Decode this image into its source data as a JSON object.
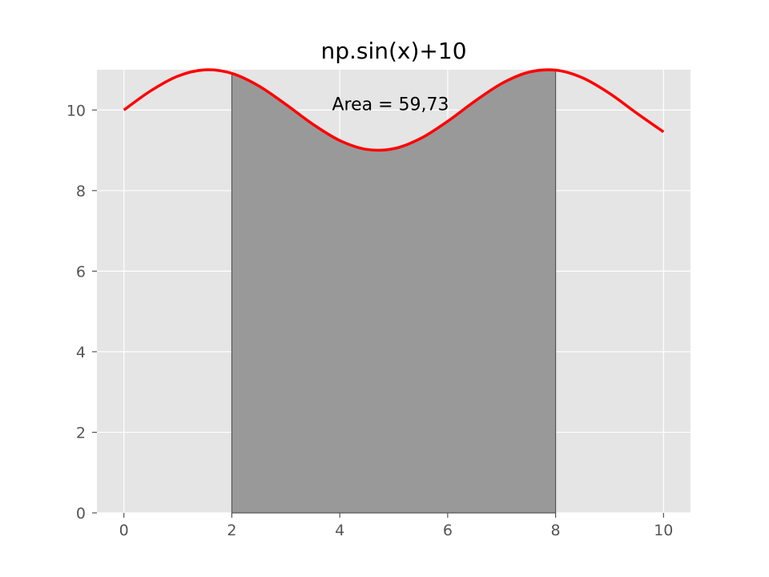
{
  "chart_data": {
    "type": "line",
    "title": "np.sin(x)+10",
    "xlabel": "",
    "ylabel": "",
    "xlim": [
      -0.5,
      10.5
    ],
    "ylim": [
      0,
      11.0
    ],
    "x_ticks": [
      0,
      2,
      4,
      6,
      8,
      10
    ],
    "y_ticks": [
      0,
      2,
      4,
      6,
      8,
      10
    ],
    "grid": true,
    "series": [
      {
        "x": [
          0,
          0.5,
          1,
          1.5,
          2,
          2.5,
          3,
          3.5,
          4,
          4.5,
          5,
          5.5,
          6,
          6.5,
          7,
          7.5,
          8,
          8.5,
          9,
          9.5,
          10
        ],
        "y": [
          10.0,
          10.479,
          10.841,
          10.997,
          10.909,
          10.598,
          10.141,
          9.649,
          9.243,
          9.022,
          9.041,
          9.295,
          9.721,
          10.215,
          10.657,
          10.938,
          10.989,
          10.798,
          10.412,
          9.925,
          9.456
        ]
      }
    ],
    "shaded_region": {
      "x_start": 2,
      "x_end": 8,
      "y_base": 0
    },
    "annotation": {
      "text": "Area = 59,73",
      "x": 5.0,
      "y": 10.0
    },
    "colors": {
      "line": "#ff0000",
      "fill": "#999999",
      "fill_edge": "#555555",
      "background": "#e5e5e5",
      "grid": "#ffffff",
      "ticks": "#555555"
    }
  }
}
